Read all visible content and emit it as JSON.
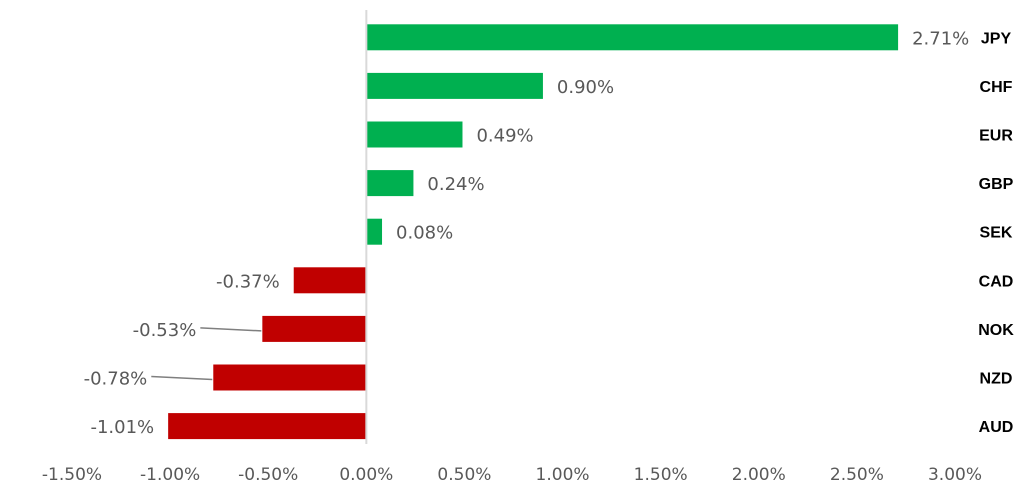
{
  "chart_data": {
    "type": "bar",
    "orientation": "horizontal",
    "categories": [
      "JPY",
      "CHF",
      "EUR",
      "GBP",
      "SEK",
      "CAD",
      "NOK",
      "NZD",
      "AUD"
    ],
    "values": [
      2.71,
      0.9,
      0.49,
      0.24,
      0.08,
      -0.37,
      -0.53,
      -0.78,
      -1.01
    ],
    "data_labels": [
      "2.71%",
      "0.90%",
      "0.49%",
      "0.24%",
      "0.08%",
      "-0.37%",
      "-0.53%",
      "-0.78%",
      "-1.01%"
    ],
    "xlim": [
      -1.5,
      3.0
    ],
    "x_ticks": [
      -1.5,
      -1.0,
      -0.5,
      0.0,
      0.5,
      1.0,
      1.5,
      2.0,
      2.5,
      3.0
    ],
    "x_tick_labels": [
      "-1.50%",
      "-1.00%",
      "-0.50%",
      "0.00%",
      "0.50%",
      "1.00%",
      "1.50%",
      "2.00%",
      "2.50%",
      "3.00%"
    ],
    "category_labels_position": "right",
    "grid": false,
    "legend": false,
    "title": "",
    "xlabel": "",
    "ylabel": "",
    "colors": {
      "positive": "#00b050",
      "negative": "#c00000",
      "axis": "#d9d9d9",
      "text": "#595959",
      "leader": "#7f7f7f"
    }
  }
}
